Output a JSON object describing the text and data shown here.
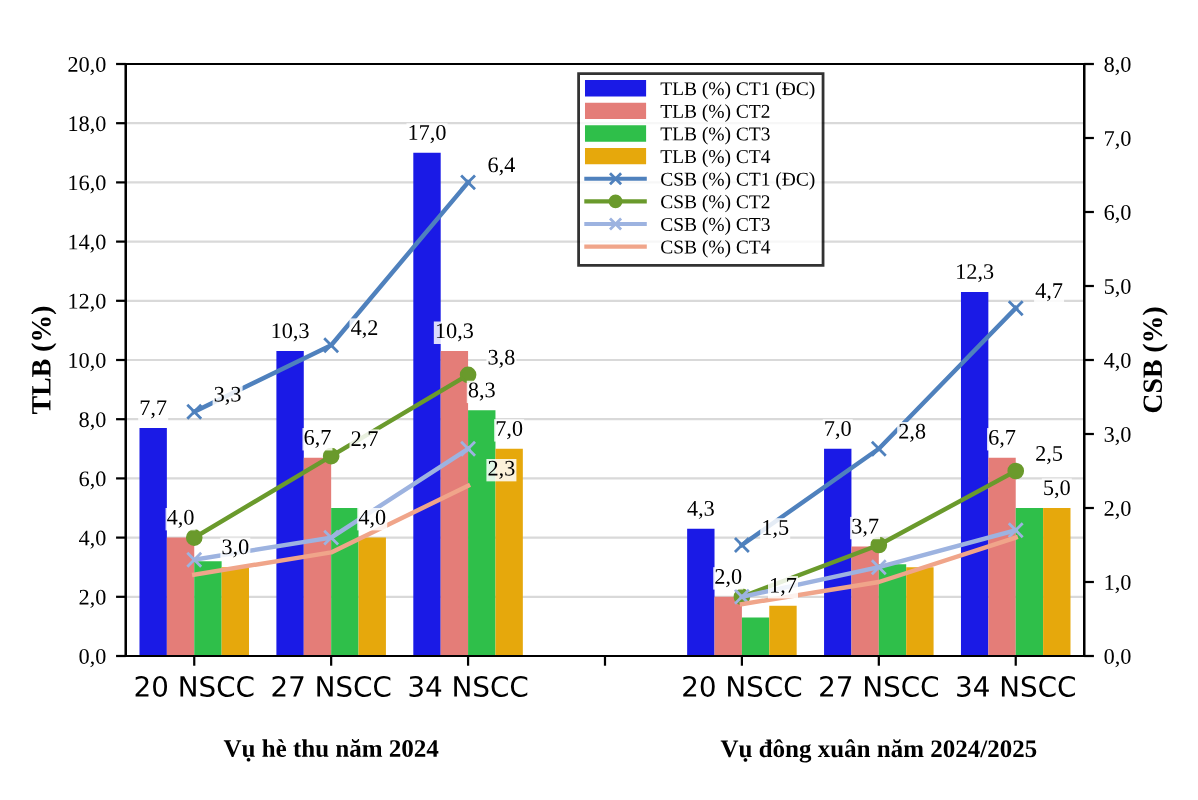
{
  "chart_data": {
    "type": "bar",
    "categories": [
      "20 NSCC",
      "27 NSCC",
      "34 NSCC",
      null,
      "20 NSCC",
      "27 NSCC",
      "34 NSCC"
    ],
    "ylabel": "TLB (%)",
    "y2label": "CSB (%)",
    "ylim": [
      0,
      20
    ],
    "yticks": [
      {
        "value": 0,
        "label": "0,0"
      },
      {
        "value": 2,
        "label": "2,0"
      },
      {
        "value": 4,
        "label": "4,0"
      },
      {
        "value": 6,
        "label": "6,0"
      },
      {
        "value": 8,
        "label": "8,0"
      },
      {
        "value": 10,
        "label": "10,0"
      },
      {
        "value": 12,
        "label": "12,0"
      },
      {
        "value": 14,
        "label": "14,0"
      },
      {
        "value": 16,
        "label": "16,0"
      },
      {
        "value": 18,
        "label": "18,0"
      },
      {
        "value": 20,
        "label": "20,0"
      }
    ],
    "y2lim": [
      0,
      8
    ],
    "y2ticks": [
      {
        "value": 0,
        "label": "0,0"
      },
      {
        "value": 1,
        "label": "1,0"
      },
      {
        "value": 2,
        "label": "2,0"
      },
      {
        "value": 3,
        "label": "3,0"
      },
      {
        "value": 4,
        "label": "4,0"
      },
      {
        "value": 5,
        "label": "5,0"
      },
      {
        "value": 6,
        "label": "6,0"
      },
      {
        "value": 7,
        "label": "7,0"
      },
      {
        "value": 8,
        "label": "8,0"
      }
    ],
    "grid": "y",
    "legend": "top",
    "annotations": [
      "Vụ hè thu năm 2024",
      "Vụ đông xuân năm 2024/2025"
    ],
    "series": [
      {
        "name": "TLB (%) CT1 (ĐC)",
        "color": "#1a1ae6",
        "values": [
          7.7,
          10.3,
          17.0,
          null,
          4.3,
          7.0,
          12.3
        ],
        "value_labels": [
          "7,7",
          "10,3",
          "17,0",
          null,
          "4,3",
          "7,0",
          "12,3"
        ]
      },
      {
        "name": "TLB (%) CT2",
        "color": "#e47d78",
        "values": [
          4.0,
          6.7,
          10.3,
          null,
          2.0,
          3.7,
          6.7
        ],
        "value_labels": [
          "4,0",
          "6,7",
          "10,3",
          null,
          "2,0",
          "3,7",
          "6,7"
        ]
      },
      {
        "name": "TLB (%) CT3",
        "color": "#2fbf4a",
        "values": [
          3.2,
          5.0,
          8.3,
          null,
          1.3,
          3.1,
          5.0
        ],
        "value_labels": [
          null,
          null,
          "8,3",
          null,
          null,
          null,
          null
        ]
      },
      {
        "name": "TLB (%) CT4",
        "color": "#e6a80c",
        "values": [
          3.0,
          4.0,
          7.0,
          null,
          1.7,
          3.0,
          5.0
        ],
        "value_labels": [
          "3,0",
          "4,0",
          "7,0",
          null,
          "1,7",
          null,
          "5,0"
        ]
      },
      {
        "name": "CSB (%) CT1 (ĐC)",
        "type": "line",
        "axis": "y2",
        "color": "#4f81bd",
        "marker": "cross",
        "values": [
          3.3,
          4.2,
          6.4,
          null,
          1.5,
          2.8,
          4.7
        ],
        "value_labels": [
          "3,3",
          "4,2",
          "6,4",
          null,
          "1,5",
          "2,8",
          "4,7"
        ]
      },
      {
        "name": "CSB (%) CT2",
        "type": "line",
        "axis": "y2",
        "color": "#6a9a2c",
        "marker": "circle",
        "values": [
          1.6,
          2.7,
          3.8,
          null,
          0.8,
          1.5,
          2.5
        ],
        "value_labels": [
          null,
          "2,7",
          "3,8",
          null,
          null,
          null,
          "2,5"
        ]
      },
      {
        "name": "CSB (%) CT3",
        "type": "line",
        "axis": "y2",
        "color": "#9db3e0",
        "marker": "cross",
        "values": [
          1.3,
          1.6,
          2.8,
          null,
          0.8,
          1.2,
          1.7
        ],
        "value_labels": [
          null,
          null,
          null,
          null,
          null,
          null,
          null
        ]
      },
      {
        "name": "CSB (%) CT4",
        "type": "line",
        "axis": "y2",
        "color": "#f0a58a",
        "marker": "none",
        "values": [
          1.1,
          1.4,
          2.3,
          null,
          0.7,
          1.0,
          1.6
        ],
        "value_labels": [
          null,
          null,
          "2,3",
          null,
          null,
          null,
          null
        ]
      }
    ]
  }
}
